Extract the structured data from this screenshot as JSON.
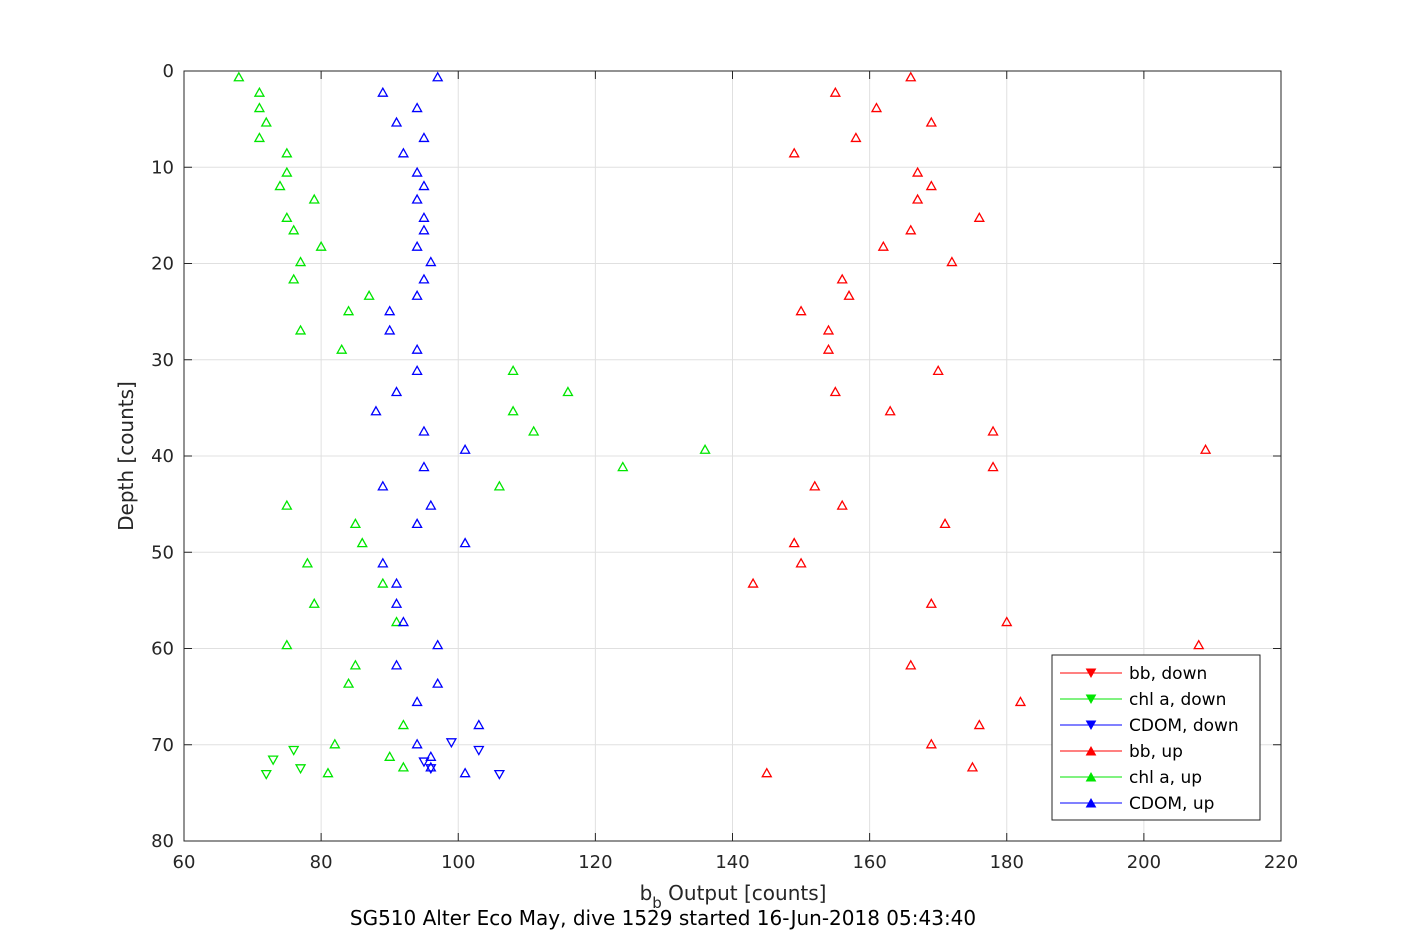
{
  "chart_data": {
    "type": "scatter",
    "title": "",
    "xlabel_main": "b",
    "xlabel_sub": "b",
    "xlabel_rest": " Output [counts]",
    "ylabel": "Depth [counts]",
    "caption": "SG510 Alter Eco May, dive 1529 started 16-Jun-2018 05:43:40",
    "xlim": [
      60,
      220
    ],
    "ylim": [
      0,
      80
    ],
    "y_reversed": true,
    "grid": true,
    "xticks": [
      "60",
      "80",
      "100",
      "120",
      "140",
      "160",
      "180",
      "200",
      "220"
    ],
    "yticks": [
      "0",
      "10",
      "20",
      "30",
      "40",
      "50",
      "60",
      "70",
      "80"
    ],
    "legend_position": "bottom-right",
    "series": [
      {
        "name": "bb, down",
        "color": "#ff0000",
        "marker": "triangle-down",
        "points": []
      },
      {
        "name": "chl a, down",
        "color": "#00e600",
        "marker": "triangle-down",
        "points": [
          [
            72,
            73.1
          ],
          [
            73,
            71.6
          ],
          [
            76,
            70.6
          ],
          [
            77,
            72.5
          ]
        ]
      },
      {
        "name": "CDOM, down",
        "color": "#0000ff",
        "marker": "triangle-down",
        "points": [
          [
            95,
            71.8
          ],
          [
            96,
            72.5
          ],
          [
            99,
            69.8
          ],
          [
            103,
            70.6
          ],
          [
            106,
            73.1
          ]
        ]
      },
      {
        "name": "bb, up",
        "color": "#ff0000",
        "marker": "triangle-up",
        "points": [
          [
            166,
            0.6
          ],
          [
            155,
            2.2
          ],
          [
            161,
            3.8
          ],
          [
            169,
            5.3
          ],
          [
            158,
            6.9
          ],
          [
            149,
            8.5
          ],
          [
            167,
            10.5
          ],
          [
            169,
            11.9
          ],
          [
            167,
            13.3
          ],
          [
            176,
            15.2
          ],
          [
            166,
            16.5
          ],
          [
            162,
            18.2
          ],
          [
            172,
            19.8
          ],
          [
            156,
            21.6
          ],
          [
            157,
            23.3
          ],
          [
            150,
            24.9
          ],
          [
            154,
            26.9
          ],
          [
            154,
            28.9
          ],
          [
            170,
            31.1
          ],
          [
            155,
            33.3
          ],
          [
            163,
            35.3
          ],
          [
            178,
            37.4
          ],
          [
            209,
            39.3
          ],
          [
            178,
            41.1
          ],
          [
            152,
            43.1
          ],
          [
            156,
            45.1
          ],
          [
            171,
            47.0
          ],
          [
            149,
            49.0
          ],
          [
            150,
            51.1
          ],
          [
            143,
            53.2
          ],
          [
            169,
            55.3
          ],
          [
            180,
            57.2
          ],
          [
            208,
            59.6
          ],
          [
            166,
            61.7
          ],
          [
            182,
            65.5
          ],
          [
            176,
            67.9
          ],
          [
            169,
            69.9
          ],
          [
            175,
            72.3
          ],
          [
            145,
            72.9
          ]
        ]
      },
      {
        "name": "chl a, up",
        "color": "#00e600",
        "marker": "triangle-up",
        "points": [
          [
            68,
            0.6
          ],
          [
            71,
            2.2
          ],
          [
            71,
            3.8
          ],
          [
            72,
            5.3
          ],
          [
            71,
            6.9
          ],
          [
            75,
            8.5
          ],
          [
            75,
            10.5
          ],
          [
            74,
            11.9
          ],
          [
            79,
            13.3
          ],
          [
            75,
            15.2
          ],
          [
            76,
            16.5
          ],
          [
            80,
            18.2
          ],
          [
            77,
            19.8
          ],
          [
            76,
            21.6
          ],
          [
            87,
            23.3
          ],
          [
            84,
            24.9
          ],
          [
            77,
            26.9
          ],
          [
            83,
            28.9
          ],
          [
            108,
            31.1
          ],
          [
            116,
            33.3
          ],
          [
            108,
            35.3
          ],
          [
            111,
            37.4
          ],
          [
            136,
            39.3
          ],
          [
            124,
            41.1
          ],
          [
            106,
            43.1
          ],
          [
            75,
            45.1
          ],
          [
            85,
            47.0
          ],
          [
            86,
            49.0
          ],
          [
            78,
            51.1
          ],
          [
            89,
            53.2
          ],
          [
            79,
            55.3
          ],
          [
            91,
            57.2
          ],
          [
            75,
            59.6
          ],
          [
            85,
            61.7
          ],
          [
            84,
            63.6
          ],
          [
            92,
            67.9
          ],
          [
            82,
            69.9
          ],
          [
            90,
            71.2
          ],
          [
            92,
            72.3
          ],
          [
            81,
            72.9
          ]
        ]
      },
      {
        "name": "CDOM, up",
        "color": "#0000ff",
        "marker": "triangle-up",
        "points": [
          [
            97,
            0.6
          ],
          [
            89,
            2.2
          ],
          [
            94,
            3.8
          ],
          [
            91,
            5.3
          ],
          [
            95,
            6.9
          ],
          [
            92,
            8.5
          ],
          [
            94,
            10.5
          ],
          [
            95,
            11.9
          ],
          [
            94,
            13.3
          ],
          [
            95,
            15.2
          ],
          [
            95,
            16.5
          ],
          [
            94,
            18.2
          ],
          [
            96,
            19.8
          ],
          [
            95,
            21.6
          ],
          [
            94,
            23.3
          ],
          [
            90,
            24.9
          ],
          [
            90,
            26.9
          ],
          [
            94,
            28.9
          ],
          [
            94,
            31.1
          ],
          [
            91,
            33.3
          ],
          [
            88,
            35.3
          ],
          [
            95,
            37.4
          ],
          [
            101,
            39.3
          ],
          [
            95,
            41.1
          ],
          [
            89,
            43.1
          ],
          [
            96,
            45.1
          ],
          [
            94,
            47.0
          ],
          [
            101,
            49.0
          ],
          [
            89,
            51.1
          ],
          [
            91,
            53.2
          ],
          [
            91,
            55.3
          ],
          [
            92,
            57.2
          ],
          [
            97,
            59.6
          ],
          [
            91,
            61.7
          ],
          [
            97,
            63.6
          ],
          [
            94,
            65.5
          ],
          [
            103,
            67.9
          ],
          [
            94,
            69.9
          ],
          [
            96,
            71.2
          ],
          [
            96,
            72.3
          ],
          [
            101,
            72.9
          ]
        ]
      }
    ]
  }
}
